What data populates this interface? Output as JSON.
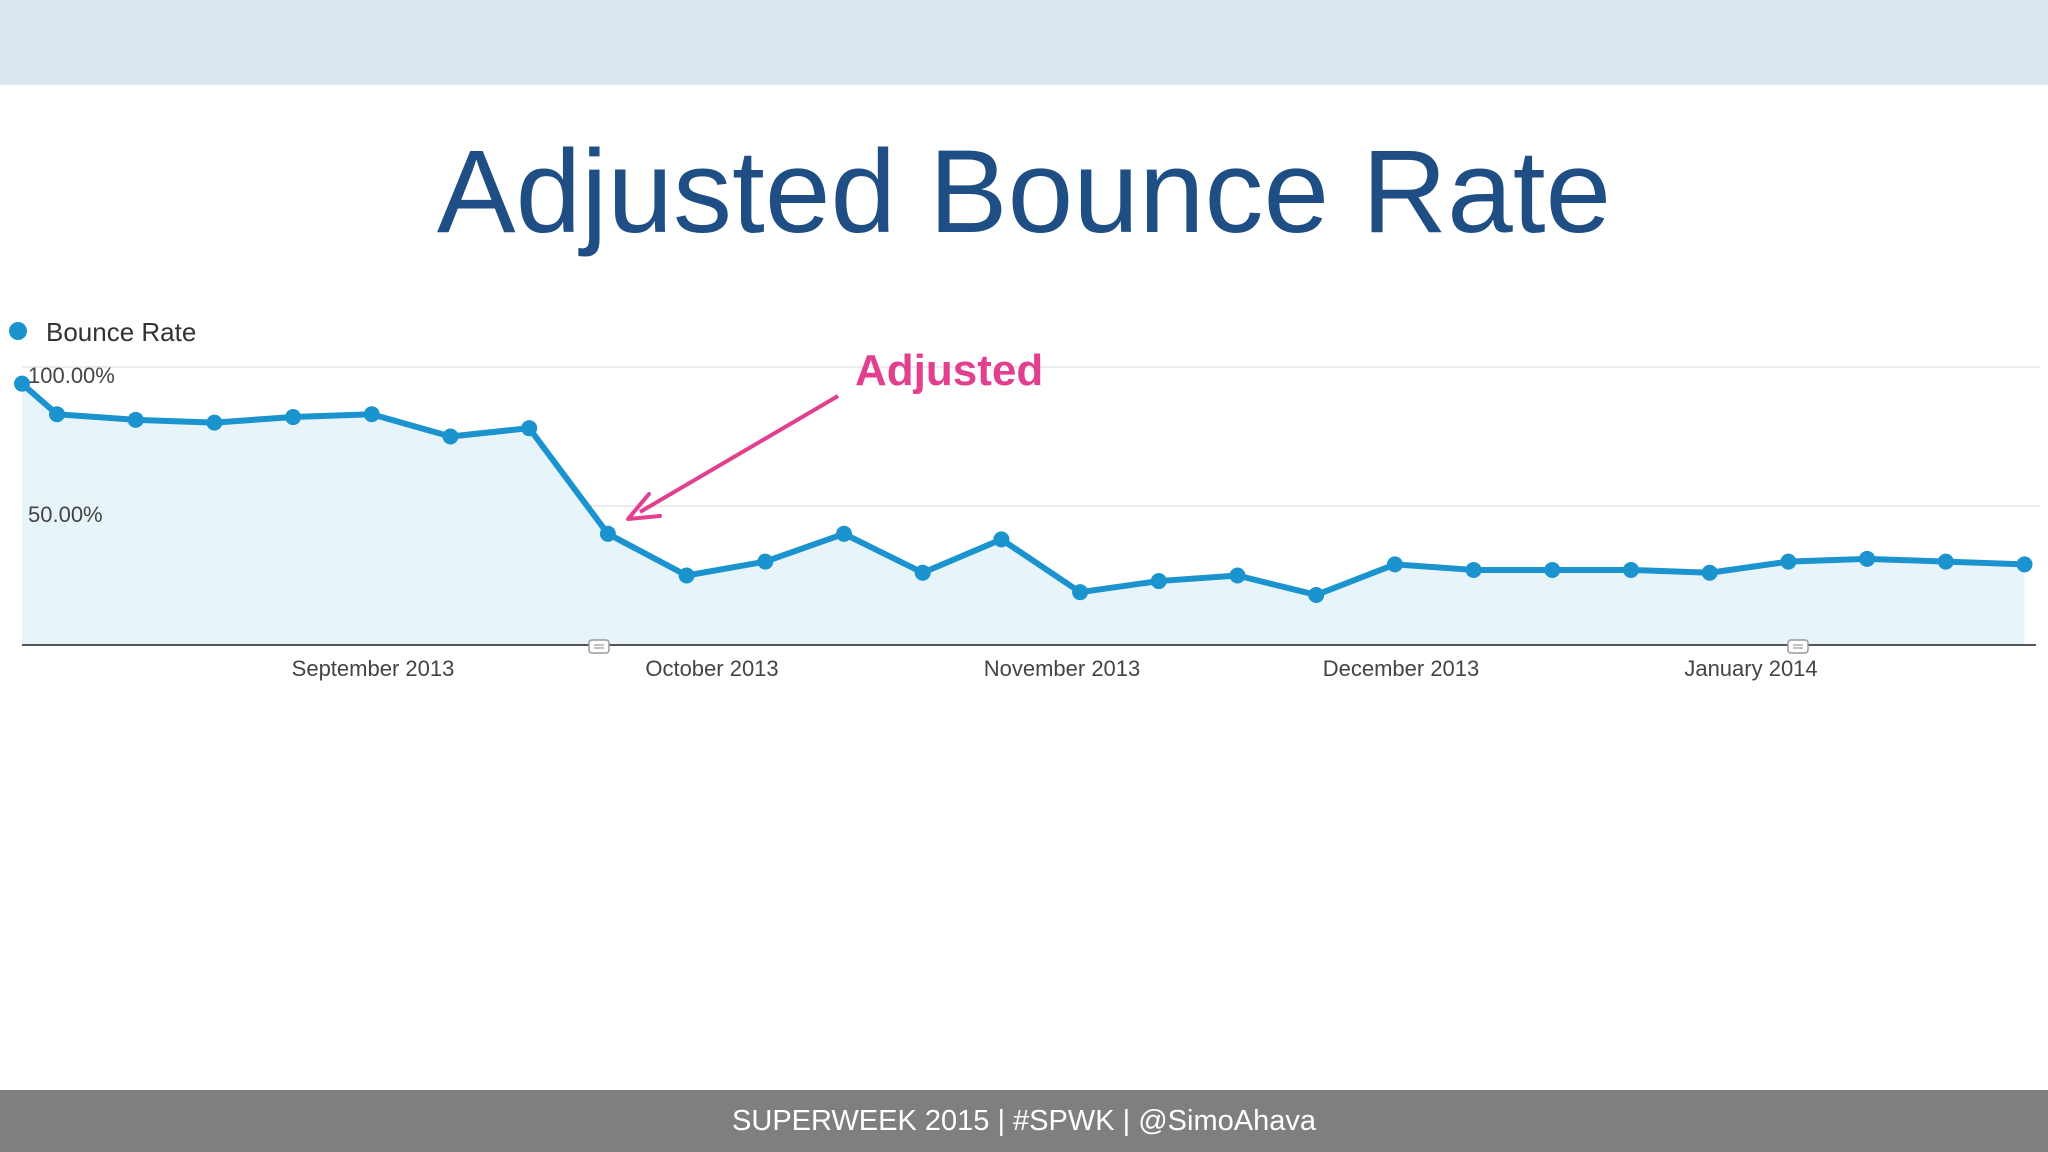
{
  "slide": {
    "title": "Adjusted Bounce Rate",
    "footer": "SUPERWEEK 2015 | #SPWK | @SimoAhava"
  },
  "colors": {
    "line": "#1a93cf",
    "area": "#e7f4fa",
    "annotation": "#e23f8f",
    "title": "#1f4e85"
  },
  "chart_data": {
    "type": "line",
    "title": "",
    "xlabel": "",
    "ylabel": "",
    "legend": {
      "label": "Bounce Rate",
      "placement": "top-left"
    },
    "ylim": [
      0,
      100
    ],
    "y_ticks": [
      "100.00%",
      "50.00%"
    ],
    "x_ticks": [
      "September 2013",
      "October 2013",
      "November 2013",
      "December 2013",
      "January 2014"
    ],
    "grid": true,
    "series": [
      {
        "name": "Bounce Rate",
        "values": [
          94,
          83,
          81,
          80,
          82,
          83,
          75,
          78,
          40,
          25,
          30,
          40,
          26,
          38,
          19,
          23,
          25,
          18,
          29,
          27,
          27,
          27,
          26,
          30,
          31,
          30,
          29
        ]
      }
    ],
    "annotation": {
      "text": "Adjusted",
      "target_point_index": 8
    }
  }
}
